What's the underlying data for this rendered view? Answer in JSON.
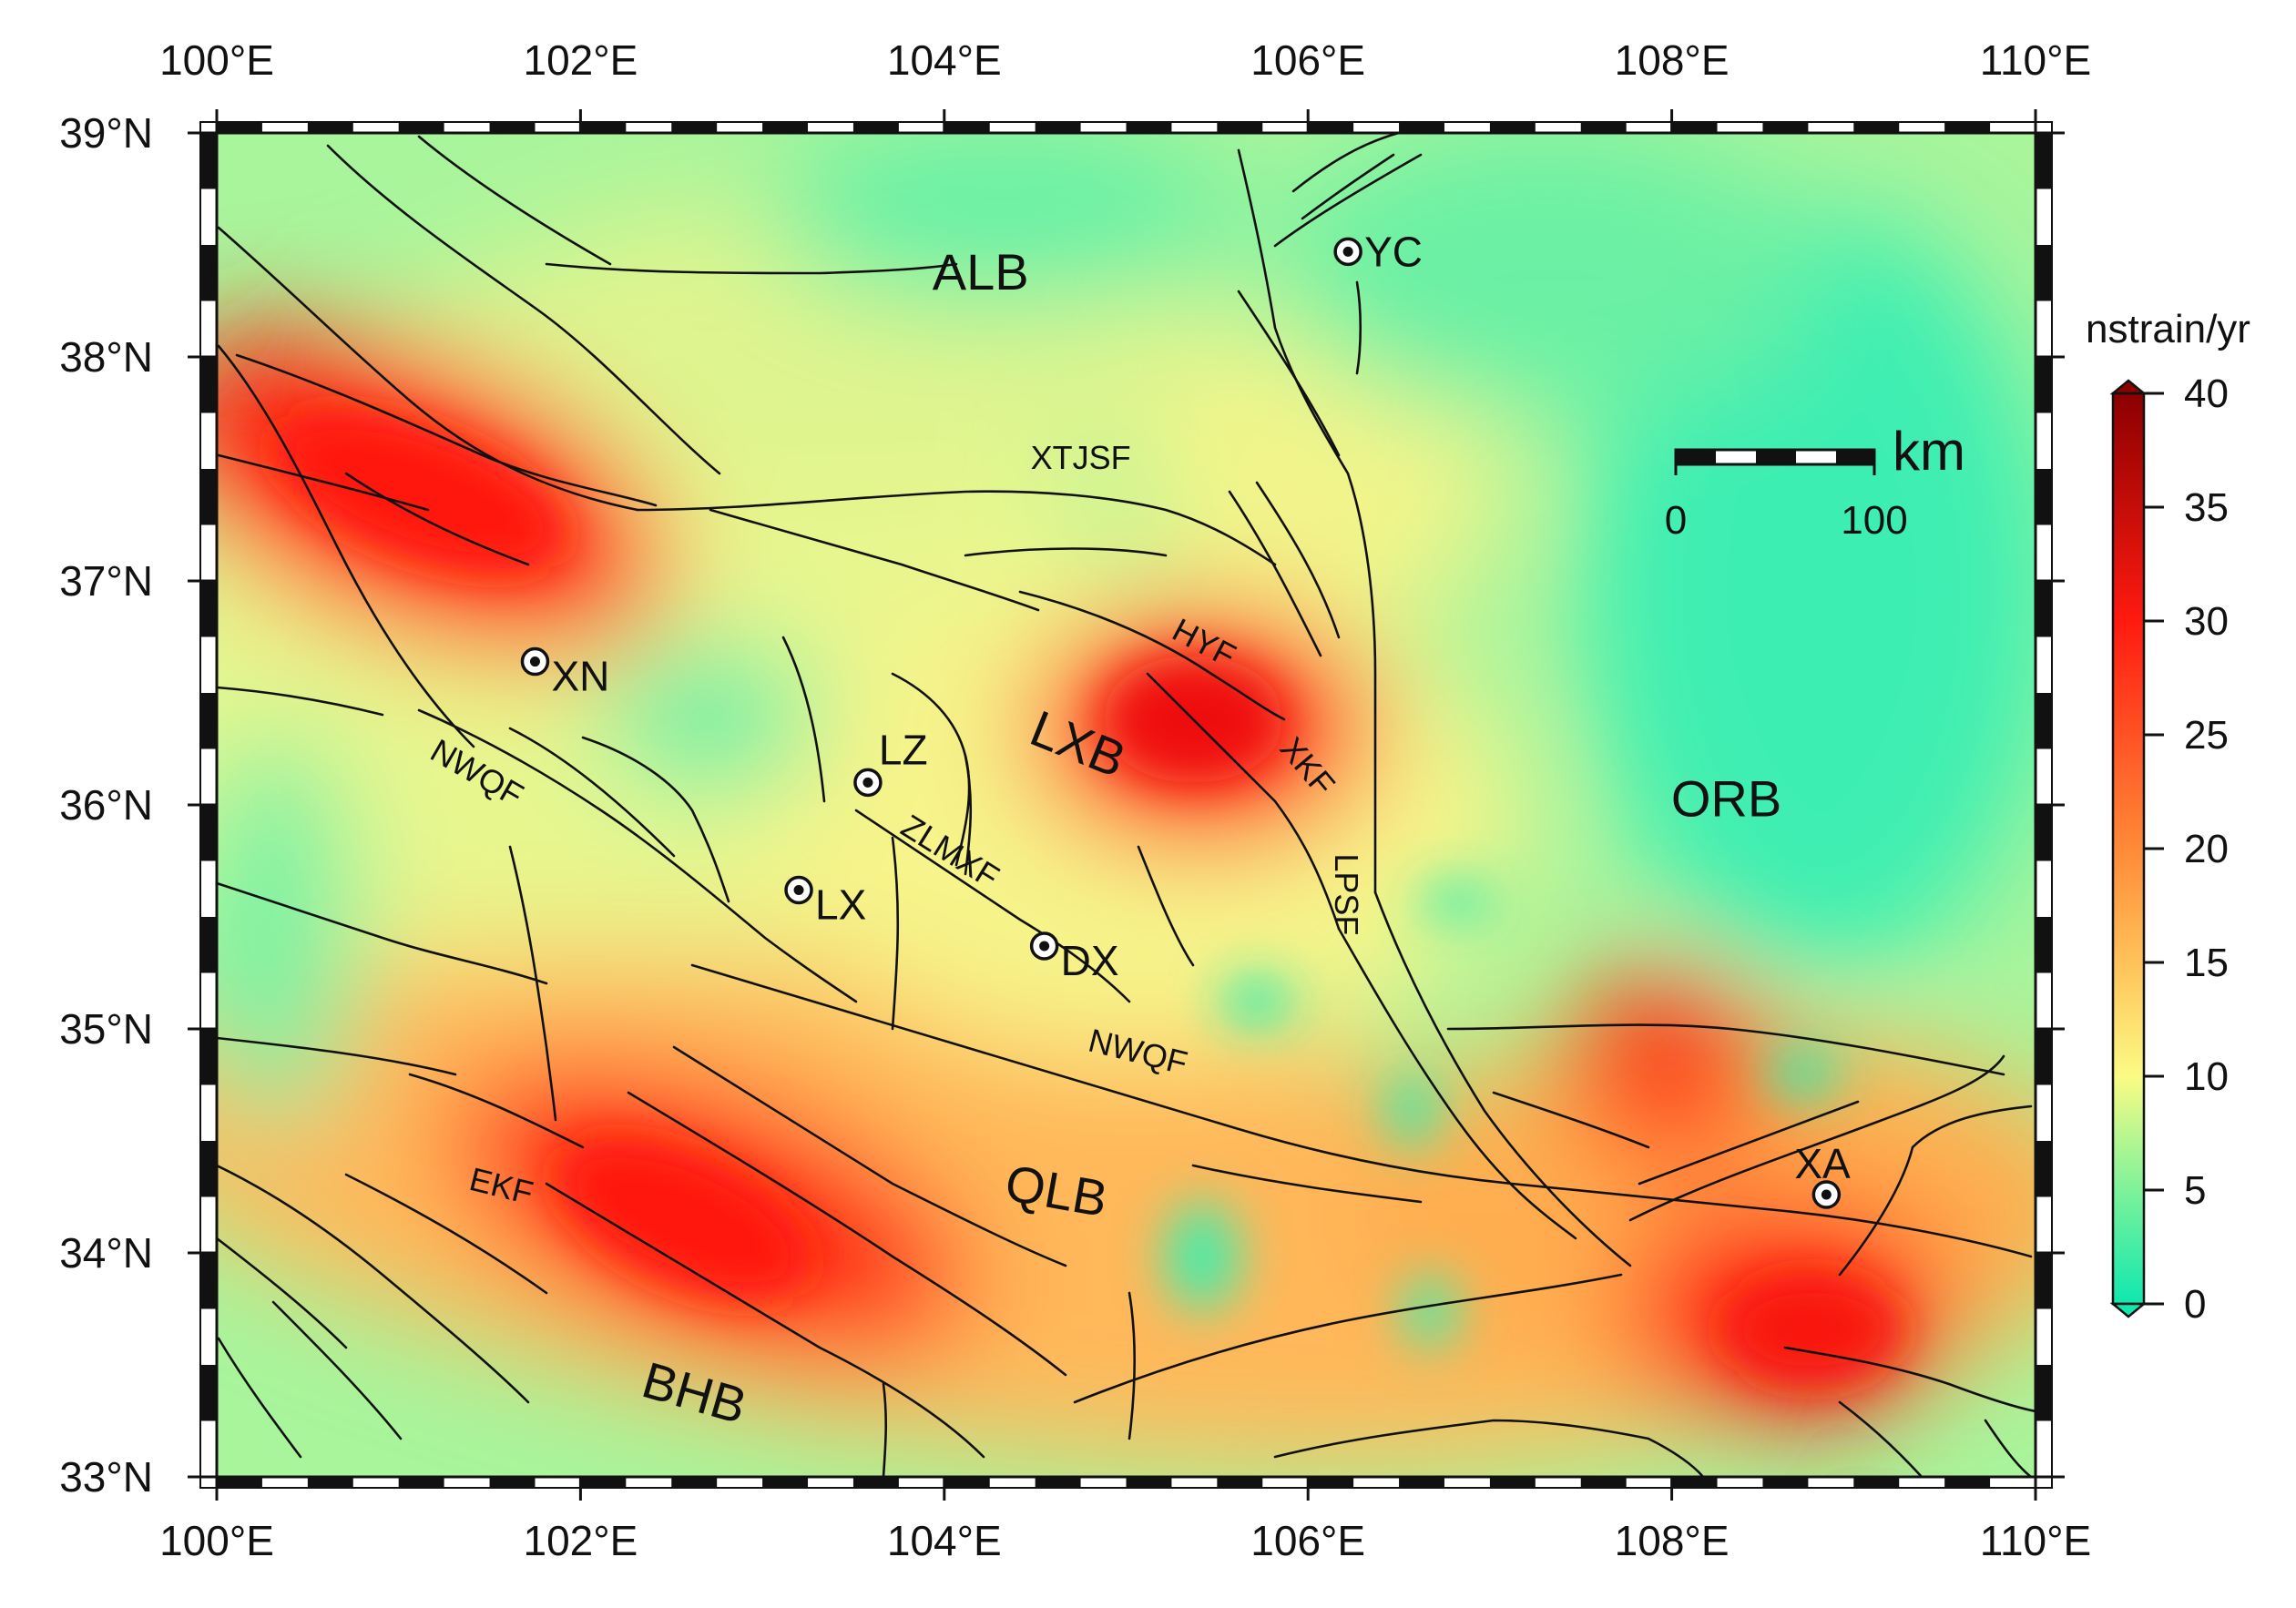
{
  "map": {
    "lon_range": [
      100,
      110
    ],
    "lat_range": [
      33,
      39
    ],
    "lon_ticks": [
      {
        "value": 100,
        "label": "100°E"
      },
      {
        "value": 102,
        "label": "102°E"
      },
      {
        "value": 104,
        "label": "104°E"
      },
      {
        "value": 106,
        "label": "106°E"
      },
      {
        "value": 108,
        "label": "108°E"
      },
      {
        "value": 110,
        "label": "110°E"
      }
    ],
    "lat_ticks": [
      {
        "value": 39,
        "label": "39°N"
      },
      {
        "value": 38,
        "label": "38°N"
      },
      {
        "value": 37,
        "label": "37°N"
      },
      {
        "value": 36,
        "label": "36°N"
      },
      {
        "value": 35,
        "label": "35°N"
      },
      {
        "value": 34,
        "label": "34°N"
      },
      {
        "value": 33,
        "label": "33°N"
      }
    ]
  },
  "colorbar": {
    "title": "nstrain/yr",
    "min": 0,
    "max": 40,
    "ticks": [
      "0",
      "5",
      "10",
      "15",
      "20",
      "25",
      "30",
      "35",
      "40"
    ],
    "colors": {
      "c0": "#0fe8b0",
      "c5": "#7ef29a",
      "c10": "#fbfb84",
      "c15": "#ffc25a",
      "c20": "#ff8a38",
      "c30": "#ff1a10",
      "c40": "#8b0000"
    }
  },
  "scalebar": {
    "unit": "km",
    "labels": [
      "0",
      "100"
    ]
  },
  "regions": [
    {
      "name": "ALB",
      "lon": 104.2,
      "lat": 38.3
    },
    {
      "name": "LXB",
      "lon": 104.7,
      "lat": 36.2
    },
    {
      "name": "ORB",
      "lon": 108.3,
      "lat": 35.95
    },
    {
      "name": "QLB",
      "lon": 104.6,
      "lat": 34.2
    },
    {
      "name": "BHB",
      "lon": 102.6,
      "lat": 33.3
    }
  ],
  "cities": [
    {
      "name": "YC",
      "lon": 106.22,
      "lat": 38.47
    },
    {
      "name": "XN",
      "lon": 101.75,
      "lat": 36.64
    },
    {
      "name": "LZ",
      "lon": 103.58,
      "lat": 36.1
    },
    {
      "name": "LX",
      "lon": 103.2,
      "lat": 35.62
    },
    {
      "name": "DX",
      "lon": 104.55,
      "lat": 35.37
    },
    {
      "name": "XA",
      "lon": 108.85,
      "lat": 34.26
    }
  ],
  "fault_labels": [
    {
      "name": "XTJSF",
      "lon": 104.75,
      "lat": 37.5,
      "angle": 0
    },
    {
      "name": "HYF",
      "lon": 105.4,
      "lat": 36.68,
      "angle": 28
    },
    {
      "name": "XKF",
      "lon": 105.95,
      "lat": 36.14,
      "angle": 50
    },
    {
      "name": "LPSF",
      "lon": 106.15,
      "lat": 35.6,
      "angle": 90
    },
    {
      "name": "NWQF",
      "lon": 101.4,
      "lat": 36.1,
      "angle": 30
    },
    {
      "name": "ZLMXF",
      "lon": 104.0,
      "lat": 35.75,
      "angle": 32
    },
    {
      "name": "NWQF",
      "lon": 105.05,
      "lat": 34.85,
      "angle": 14
    },
    {
      "name": "EKF",
      "lon": 101.55,
      "lat": 34.25,
      "angle": 14
    }
  ]
}
